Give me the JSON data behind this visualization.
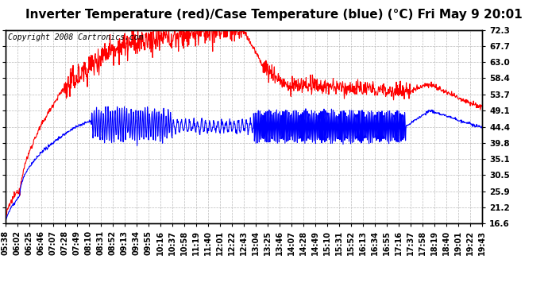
{
  "title": "Inverter Temperature (red)/Case Temperature (blue) (°C) Fri May 9 20:01",
  "copyright_text": "Copyright 2008 Cartronics.com",
  "yticks": [
    16.6,
    21.2,
    25.9,
    30.5,
    35.1,
    39.8,
    44.4,
    49.1,
    53.7,
    58.4,
    63.0,
    67.7,
    72.3
  ],
  "ymin": 16.6,
  "ymax": 72.3,
  "x_labels": [
    "05:38",
    "06:02",
    "06:25",
    "06:46",
    "07:07",
    "07:28",
    "07:49",
    "08:10",
    "08:31",
    "08:52",
    "09:13",
    "09:34",
    "09:55",
    "10:16",
    "10:37",
    "10:58",
    "11:19",
    "11:40",
    "12:01",
    "12:22",
    "12:43",
    "13:04",
    "13:25",
    "13:46",
    "14:07",
    "14:28",
    "14:49",
    "15:10",
    "15:31",
    "15:52",
    "16:13",
    "16:34",
    "16:55",
    "17:16",
    "17:37",
    "17:58",
    "18:19",
    "18:40",
    "19:01",
    "19:22",
    "19:43"
  ],
  "background_color": "#ffffff",
  "plot_background": "#ffffff",
  "grid_color": "#bbbbbb",
  "red_color": "#ff0000",
  "blue_color": "#0000ff",
  "title_fontsize": 11,
  "tick_fontsize": 7.5,
  "copyright_fontsize": 7
}
